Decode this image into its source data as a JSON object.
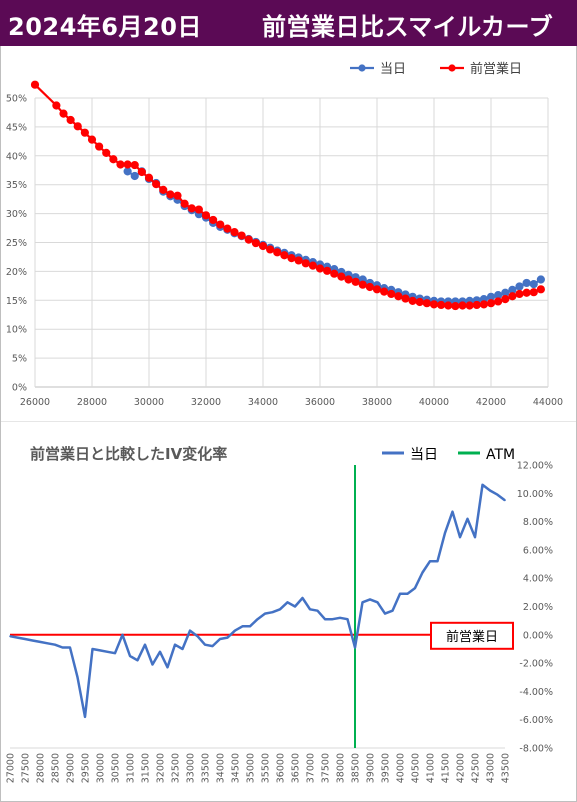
{
  "header": {
    "date": "2024年6月20日",
    "title": "前営業日比スマイルカーブ"
  },
  "colors": {
    "header_bg": "#5b0a55",
    "current": "#4472c4",
    "previous": "#ff0000",
    "change_line": "#4472c4",
    "atm": "#00b050",
    "grid": "#d9d9d9"
  },
  "chart_data": [
    {
      "type": "line",
      "legend": [
        "当日",
        "前営業日"
      ],
      "legend_position": "top-right",
      "grid": true,
      "xlim": [
        26000,
        44000
      ],
      "ylim": [
        0,
        0.5
      ],
      "x_ticks": [
        "26000",
        "28000",
        "30000",
        "32000",
        "34000",
        "36000",
        "38000",
        "40000",
        "42000",
        "44000"
      ],
      "y_ticks": [
        "0%",
        "5%",
        "10%",
        "15%",
        "20%",
        "25%",
        "30%",
        "35%",
        "40%",
        "45%",
        "50%"
      ],
      "series": [
        {
          "name": "当日",
          "marker": "circle",
          "points": [
            [
              29250,
              0.373
            ],
            [
              29500,
              0.365
            ],
            [
              29750,
              0.373
            ],
            [
              30000,
              0.36
            ],
            [
              30250,
              0.353
            ],
            [
              30500,
              0.338
            ],
            [
              30750,
              0.33
            ],
            [
              31000,
              0.324
            ],
            [
              31250,
              0.313
            ],
            [
              31500,
              0.306
            ],
            [
              31750,
              0.299
            ],
            [
              32000,
              0.293
            ],
            [
              32250,
              0.284
            ],
            [
              32500,
              0.277
            ],
            [
              32750,
              0.272
            ],
            [
              33000,
              0.266
            ],
            [
              33250,
              0.261
            ],
            [
              33500,
              0.256
            ],
            [
              33750,
              0.251
            ],
            [
              34000,
              0.246
            ],
            [
              34250,
              0.241
            ],
            [
              34500,
              0.236
            ],
            [
              34750,
              0.232
            ],
            [
              35000,
              0.228
            ],
            [
              35250,
              0.224
            ],
            [
              35500,
              0.22
            ],
            [
              35750,
              0.216
            ],
            [
              36000,
              0.212
            ],
            [
              36250,
              0.208
            ],
            [
              36500,
              0.204
            ],
            [
              36750,
              0.199
            ],
            [
              37000,
              0.194
            ],
            [
              37250,
              0.19
            ],
            [
              37500,
              0.186
            ],
            [
              37750,
              0.18
            ],
            [
              38000,
              0.176
            ],
            [
              38250,
              0.171
            ],
            [
              38500,
              0.168
            ],
            [
              38750,
              0.164
            ],
            [
              39000,
              0.16
            ],
            [
              39250,
              0.156
            ],
            [
              39500,
              0.153
            ],
            [
              39750,
              0.151
            ],
            [
              40000,
              0.149
            ],
            [
              40250,
              0.148
            ],
            [
              40500,
              0.148
            ],
            [
              40750,
              0.148
            ],
            [
              41000,
              0.148
            ],
            [
              41250,
              0.149
            ],
            [
              41500,
              0.15
            ],
            [
              41750,
              0.152
            ],
            [
              42000,
              0.156
            ],
            [
              42250,
              0.159
            ],
            [
              42500,
              0.163
            ],
            [
              42750,
              0.168
            ],
            [
              43000,
              0.174
            ],
            [
              43250,
              0.18
            ],
            [
              43500,
              0.178
            ],
            [
              43750,
              0.186
            ]
          ]
        },
        {
          "name": "前営業日",
          "marker": "circle",
          "points": [
            [
              26000,
              0.523
            ],
            [
              26750,
              0.487
            ],
            [
              27000,
              0.473
            ],
            [
              27250,
              0.462
            ],
            [
              27500,
              0.451
            ],
            [
              27750,
              0.44
            ],
            [
              28000,
              0.428
            ],
            [
              28250,
              0.416
            ],
            [
              28500,
              0.405
            ],
            [
              28750,
              0.394
            ],
            [
              29000,
              0.385
            ],
            [
              29250,
              0.385
            ],
            [
              29500,
              0.384
            ],
            [
              29750,
              0.372
            ],
            [
              30000,
              0.362
            ],
            [
              30250,
              0.351
            ],
            [
              30500,
              0.341
            ],
            [
              30750,
              0.333
            ],
            [
              31000,
              0.331
            ],
            [
              31250,
              0.317
            ],
            [
              31500,
              0.309
            ],
            [
              31750,
              0.307
            ],
            [
              32000,
              0.297
            ],
            [
              32250,
              0.289
            ],
            [
              32500,
              0.281
            ],
            [
              32750,
              0.274
            ],
            [
              33000,
              0.268
            ],
            [
              33250,
              0.262
            ],
            [
              33500,
              0.255
            ],
            [
              33750,
              0.249
            ],
            [
              34000,
              0.244
            ],
            [
              34250,
              0.238
            ],
            [
              34500,
              0.233
            ],
            [
              34750,
              0.228
            ],
            [
              35000,
              0.223
            ],
            [
              35250,
              0.219
            ],
            [
              35500,
              0.214
            ],
            [
              35750,
              0.21
            ],
            [
              36000,
              0.205
            ],
            [
              36250,
              0.201
            ],
            [
              36500,
              0.196
            ],
            [
              36750,
              0.191
            ],
            [
              37000,
              0.186
            ],
            [
              37250,
              0.182
            ],
            [
              37500,
              0.177
            ],
            [
              37750,
              0.173
            ],
            [
              38000,
              0.169
            ],
            [
              38250,
              0.165
            ],
            [
              38500,
              0.161
            ],
            [
              38750,
              0.157
            ],
            [
              39000,
              0.153
            ],
            [
              39250,
              0.149
            ],
            [
              39500,
              0.147
            ],
            [
              39750,
              0.145
            ],
            [
              40000,
              0.143
            ],
            [
              40250,
              0.142
            ],
            [
              40500,
              0.141
            ],
            [
              40750,
              0.14
            ],
            [
              41000,
              0.141
            ],
            [
              41250,
              0.141
            ],
            [
              41500,
              0.142
            ],
            [
              41750,
              0.143
            ],
            [
              42000,
              0.145
            ],
            [
              42250,
              0.148
            ],
            [
              42500,
              0.152
            ],
            [
              42750,
              0.157
            ],
            [
              43000,
              0.161
            ],
            [
              43250,
              0.163
            ],
            [
              43500,
              0.164
            ],
            [
              43750,
              0.169
            ]
          ]
        }
      ]
    },
    {
      "type": "line",
      "title": "前営業日と比較したIV変化率",
      "legend": [
        "当日",
        "ATM"
      ],
      "legend_position": "top-right",
      "grid": false,
      "ylim": [
        -0.08,
        0.12
      ],
      "y_ticks": [
        "12.00%",
        "10.00%",
        "8.00%",
        "6.00%",
        "4.00%",
        "2.00%",
        "0.00%",
        "-2.00%",
        "-4.00%",
        "-6.00%",
        "-8.00%"
      ],
      "categories": [
        "27000",
        "27250",
        "27500",
        "27750",
        "28000",
        "28250",
        "28500",
        "28750",
        "29000",
        "29250",
        "29500",
        "29750",
        "30000",
        "30250",
        "30500",
        "30750",
        "31000",
        "31250",
        "31500",
        "31750",
        "32000",
        "32250",
        "32500",
        "32750",
        "33000",
        "33250",
        "33500",
        "33750",
        "34000",
        "34250",
        "34500",
        "34750",
        "35000",
        "35250",
        "35500",
        "35750",
        "36000",
        "36250",
        "36500",
        "36750",
        "37000",
        "37250",
        "37500",
        "37750",
        "38000",
        "38250",
        "38500",
        "38750",
        "39000",
        "39250",
        "39500",
        "39750",
        "40000",
        "40250",
        "40500",
        "40750",
        "41000",
        "41250",
        "41500",
        "41750",
        "42000",
        "42250",
        "42500",
        "42750",
        "43000",
        "43250",
        "43500"
      ],
      "tick_labels": [
        "27000",
        "27500",
        "28000",
        "28500",
        "29000",
        "29500",
        "30000",
        "30500",
        "31000",
        "31500",
        "32000",
        "32500",
        "33000",
        "33500",
        "34000",
        "34500",
        "35000",
        "35500",
        "36000",
        "36500",
        "37000",
        "37500",
        "38000",
        "38500",
        "39000",
        "39500",
        "40000",
        "40500",
        "41000",
        "41500",
        "42000",
        "42500",
        "43000",
        "43500"
      ],
      "atm": "38500",
      "baseline_label": "前営業日",
      "series": [
        {
          "name": "当日",
          "values": [
            -0.001,
            -0.002,
            -0.003,
            -0.004,
            -0.005,
            -0.006,
            -0.007,
            -0.009,
            -0.009,
            -0.03,
            -0.058,
            -0.01,
            -0.011,
            -0.012,
            -0.013,
            0.0,
            -0.015,
            -0.018,
            -0.007,
            -0.021,
            -0.012,
            -0.023,
            -0.007,
            -0.01,
            0.003,
            -0.001,
            -0.007,
            -0.008,
            -0.003,
            -0.002,
            0.003,
            0.006,
            0.006,
            0.011,
            0.015,
            0.016,
            0.018,
            0.023,
            0.02,
            0.026,
            0.018,
            0.017,
            0.011,
            0.011,
            0.012,
            0.011,
            -0.009,
            0.023,
            0.025,
            0.023,
            0.015,
            0.017,
            0.029,
            0.029,
            0.033,
            0.044,
            0.052,
            0.052,
            0.072,
            0.087,
            0.069,
            0.082,
            0.069,
            0.106,
            0.102,
            0.099,
            0.095
          ]
        }
      ]
    }
  ]
}
